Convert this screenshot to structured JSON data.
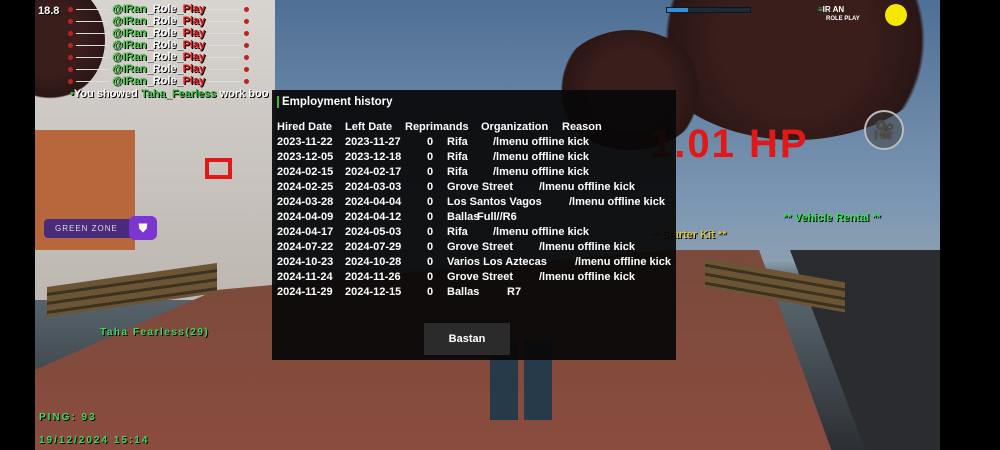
{
  "hud": {
    "fps": "18.8",
    "chat_lines": [
      {
        "prefix": "@IRan_Role_",
        "suffix": "Play"
      },
      {
        "prefix": "@IRan_Role_",
        "suffix": "Play"
      },
      {
        "prefix": "@IRan_Role_",
        "suffix": "Play"
      },
      {
        "prefix": "@IRan_Role_",
        "suffix": "Play"
      },
      {
        "prefix": "@IRan_Role_",
        "suffix": "Play"
      },
      {
        "prefix": "@IRan_Role_",
        "suffix": "Play"
      },
      {
        "prefix": "@IRan_Role_",
        "suffix": "Play"
      }
    ],
    "message": {
      "before": "You showed ",
      "name": "Taha_Fearless",
      "after": " work boo"
    },
    "progress": 0.25,
    "logo_line1": "IR AN",
    "logo_line2": "ROLE PLAY",
    "hp_text": "1.01 HP",
    "green_zone": "GREEN ZONE",
    "player_name": "Taha Fearless(29)",
    "ping": "PING: 93",
    "datetime": "19/12/2024 15:14",
    "vehicle_rental": "**  Vehicle Rental **",
    "starter_kit": "** Starter Kit **",
    "colors": {
      "accent_green": "#3ddc5a",
      "hp_red": "#e01818",
      "zone_purple": "#7b35d0"
    }
  },
  "dialog": {
    "title": "Employment history",
    "columns": [
      "Hired Date",
      "Left Date",
      "Reprimands",
      "Organization",
      "Reason"
    ],
    "rows": [
      [
        "2023-11-22",
        "2023-11-27",
        "0",
        "Rifa",
        "/lmenu offline kick"
      ],
      [
        "2023-12-05",
        "2023-12-18",
        "0",
        "Rifa",
        "/lmenu offline kick"
      ],
      [
        "2024-02-15",
        "2024-02-17",
        "0",
        "Rifa",
        "/lmenu offline kick"
      ],
      [
        "2024-02-25",
        "2024-03-03",
        "0",
        "Grove Street",
        "/lmenu offline kick"
      ],
      [
        "2024-03-28",
        "2024-04-04",
        "0",
        "Los Santos Vagos",
        "/lmenu offline kick"
      ],
      [
        "2024-04-09",
        "2024-04-12",
        "0",
        "Ballas",
        "Full//R6"
      ],
      [
        "2024-04-17",
        "2024-05-03",
        "0",
        "Rifa",
        "/lmenu offline kick"
      ],
      [
        "2024-07-22",
        "2024-07-29",
        "0",
        "Grove Street",
        "/lmenu offline kick"
      ],
      [
        "2024-10-23",
        "2024-10-28",
        "0",
        "Varios Los Aztecas",
        "/lmenu offline kick"
      ],
      [
        "2024-11-24",
        "2024-11-26",
        "0",
        "Grove Street",
        "/lmenu offline kick"
      ],
      [
        "2024-11-29",
        "2024-12-15",
        "0",
        "Ballas",
        "R7"
      ]
    ],
    "button": "Bastan"
  }
}
